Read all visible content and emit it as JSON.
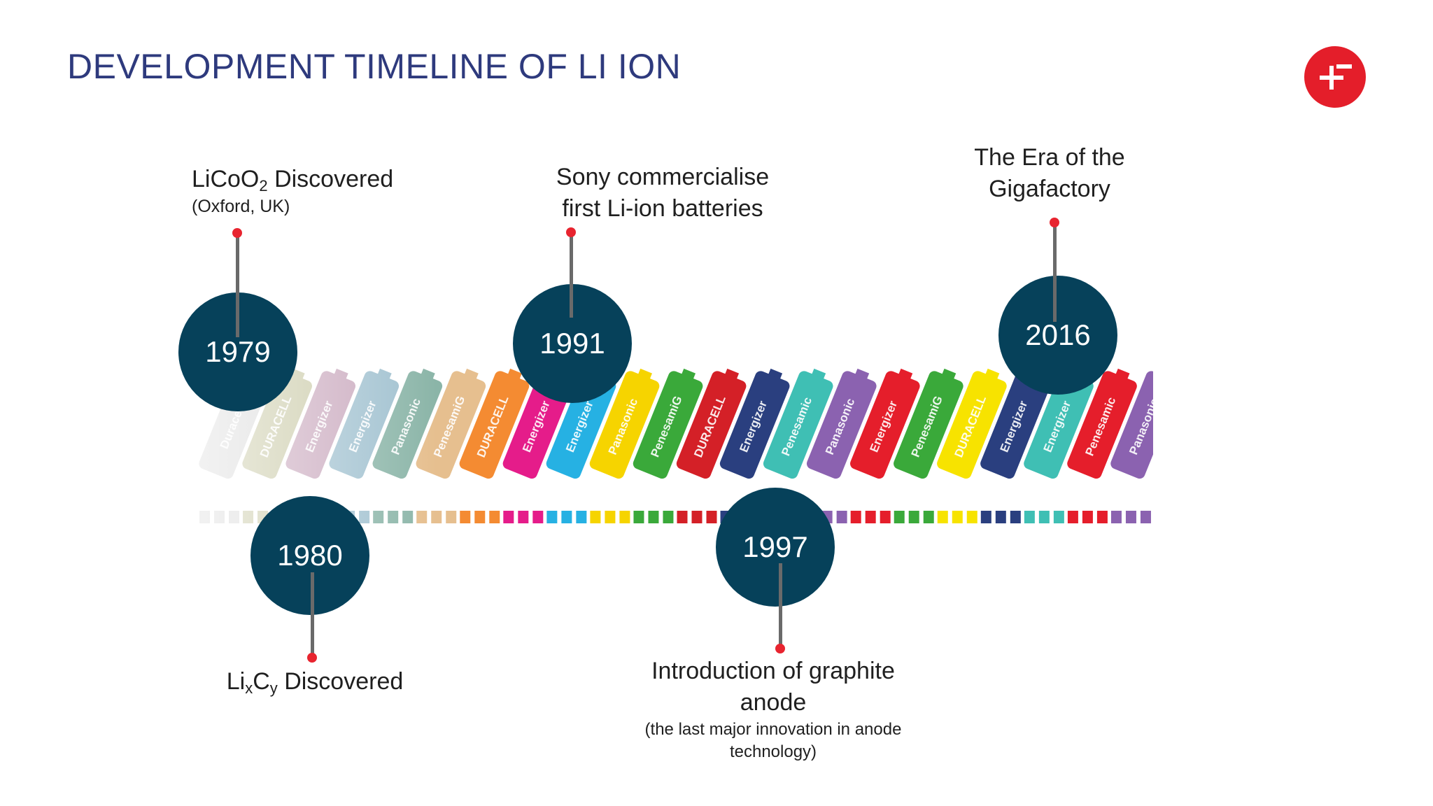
{
  "title": "DEVELOPMENT TIMELINE OF LI ION",
  "logo": {
    "icon": "plus-minus-logo-icon",
    "color": "#e41e2a"
  },
  "colors": {
    "year_circle": "#06415a",
    "title": "#2e3a7d",
    "dot": "#e8242f"
  },
  "batteries": [
    {
      "label": "Duracell",
      "color": "#d9d9d9"
    },
    {
      "label": "DURACELL",
      "color": "#c9c9a6"
    },
    {
      "label": "Energizer",
      "color": "#c9a8bd"
    },
    {
      "label": "Energizer",
      "color": "#9fc0cf"
    },
    {
      "label": "Panasonic",
      "color": "#8bb5a8"
    },
    {
      "label": "PenesamiG",
      "color": "#e6bf8f"
    },
    {
      "label": "DURACELL",
      "color": "#f48b32"
    },
    {
      "label": "Energizer",
      "color": "#e51c8a"
    },
    {
      "label": "Energizer",
      "color": "#26b1e3"
    },
    {
      "label": "Panasonic",
      "color": "#f6d400"
    },
    {
      "label": "PenesamiG",
      "color": "#3aa93a"
    },
    {
      "label": "DURACELL",
      "color": "#d42027"
    },
    {
      "label": "Energizer",
      "color": "#2a3f7f"
    },
    {
      "label": "Penesamic",
      "color": "#3fbfb4"
    },
    {
      "label": "Panasonic",
      "color": "#8b62b0"
    },
    {
      "label": "Energizer",
      "color": "#e51e2b"
    },
    {
      "label": "PenesamiG",
      "color": "#3aa93a"
    },
    {
      "label": "DURACELL",
      "color": "#f7e300"
    },
    {
      "label": "Energizer",
      "color": "#2a3f7f"
    },
    {
      "label": "Energizer",
      "color": "#3fbfb4"
    },
    {
      "label": "Penesamic",
      "color": "#e51e2b"
    },
    {
      "label": "Panasonic",
      "color": "#8b62b0"
    }
  ],
  "events": {
    "e1979": {
      "year": "1979",
      "title_pre": "LiCoO",
      "title_sub": "2",
      "title_post": " Discovered",
      "subtitle": "(Oxford, UK)"
    },
    "e1980": {
      "year": "1980",
      "t1": "Li",
      "s1": "x",
      "t2": "C",
      "s2": "y",
      "t3": " Discovered"
    },
    "e1991": {
      "year": "1991",
      "line1": "Sony commercialise",
      "line2": "first Li-ion batteries"
    },
    "e1997": {
      "year": "1997",
      "line1": "Introduction of graphite",
      "line2": "anode",
      "note1": "(the last major innovation in anode",
      "note2": "technology)"
    },
    "e2016": {
      "year": "2016",
      "line1": "The Era of the",
      "line2": "Gigafactory"
    }
  }
}
